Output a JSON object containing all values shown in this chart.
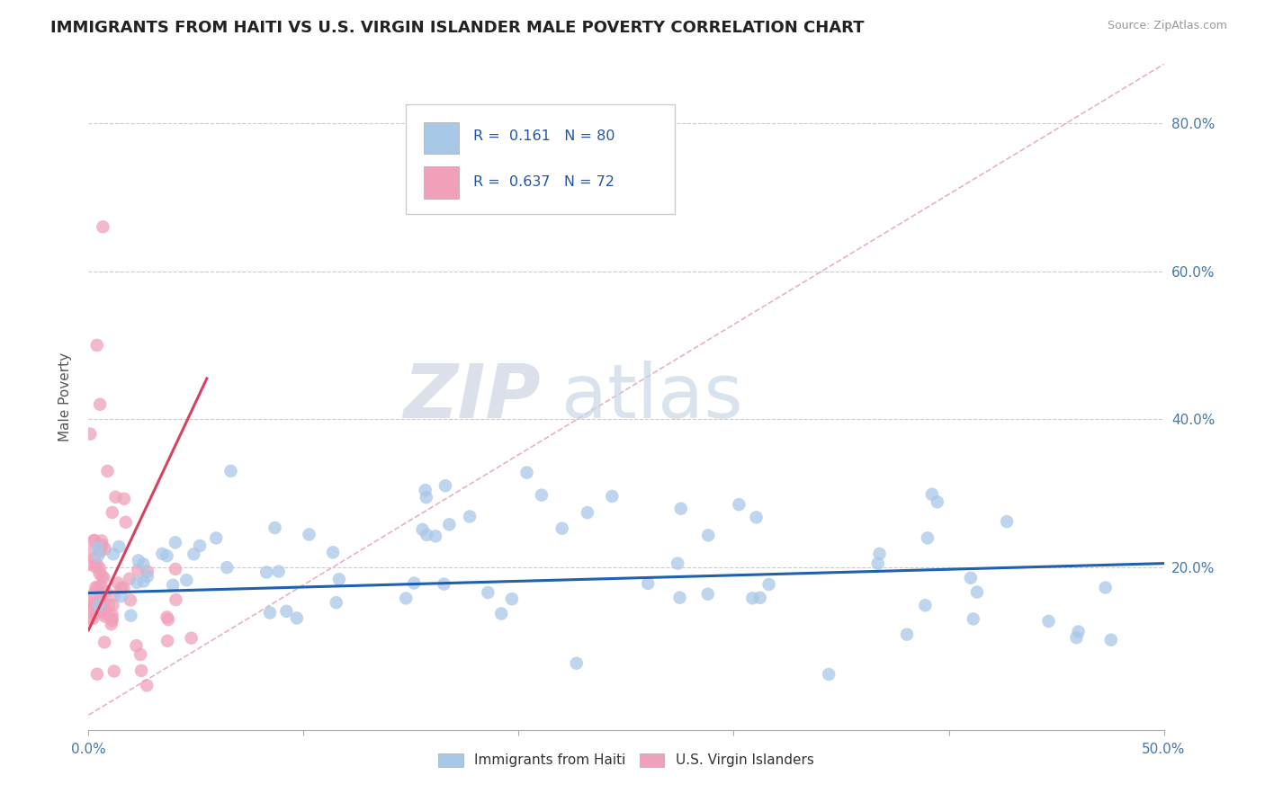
{
  "title": "IMMIGRANTS FROM HAITI VS U.S. VIRGIN ISLANDER MALE POVERTY CORRELATION CHART",
  "source": "Source: ZipAtlas.com",
  "ylabel": "Male Poverty",
  "xlim": [
    0.0,
    0.5
  ],
  "ylim": [
    -0.02,
    0.88
  ],
  "R1": 0.161,
  "N1": 80,
  "R2": 0.637,
  "N2": 72,
  "color_blue": "#a8c8e8",
  "color_pink": "#f0a0b8",
  "line_blue": "#2060b0",
  "line_pink": "#d84060",
  "line_dashed_color": "#e0a0b0",
  "watermark_zip": "ZIP",
  "watermark_atlas": "atlas",
  "legend_label1": "Immigrants from Haiti",
  "legend_label2": "U.S. Virgin Islanders",
  "blue_line_x": [
    0.0,
    0.5
  ],
  "blue_line_y": [
    0.165,
    0.205
  ],
  "pink_line_x": [
    0.0,
    0.055
  ],
  "pink_line_y": [
    0.115,
    0.455
  ],
  "dashed_line_x": [
    0.0,
    0.5
  ],
  "dashed_line_y": [
    0.0,
    0.88
  ],
  "yticks": [
    0.2,
    0.4,
    0.6,
    0.8
  ],
  "ytick_labels": [
    "20.0%",
    "40.0%",
    "60.0%",
    "80.0%"
  ]
}
